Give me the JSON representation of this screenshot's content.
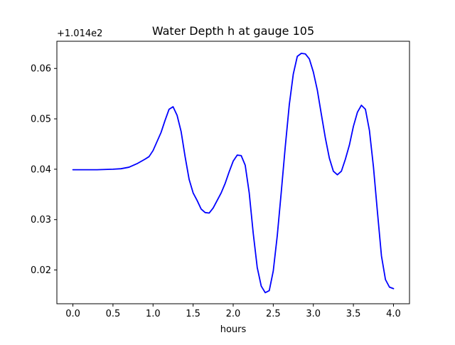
{
  "chart_data": {
    "type": "line",
    "title": "Water Depth h at gauge 105",
    "xlabel": "hours",
    "ylabel": "",
    "y_offset_label": "+1.014e2",
    "xlim": [
      -0.2,
      4.2
    ],
    "ylim": [
      0.0133,
      0.0654
    ],
    "xticks": [
      0.0,
      0.5,
      1.0,
      1.5,
      2.0,
      2.5,
      3.0,
      3.5,
      4.0
    ],
    "xtick_labels": [
      "0.0",
      "0.5",
      "1.0",
      "1.5",
      "2.0",
      "2.5",
      "3.0",
      "3.5",
      "4.0"
    ],
    "yticks": [
      0.02,
      0.03,
      0.04,
      0.05,
      0.06
    ],
    "ytick_labels": [
      "0.02",
      "0.03",
      "0.04",
      "0.05",
      "0.06"
    ],
    "grid": false,
    "legend": "none",
    "series": [
      {
        "color": "#0000ff",
        "x": [
          0.0,
          0.1,
          0.2,
          0.3,
          0.4,
          0.5,
          0.6,
          0.7,
          0.8,
          0.9,
          0.95,
          1.0,
          1.05,
          1.1,
          1.15,
          1.2,
          1.25,
          1.3,
          1.35,
          1.4,
          1.45,
          1.5,
          1.55,
          1.6,
          1.65,
          1.7,
          1.75,
          1.8,
          1.85,
          1.9,
          1.95,
          2.0,
          2.05,
          2.1,
          2.15,
          2.2,
          2.25,
          2.3,
          2.35,
          2.4,
          2.45,
          2.5,
          2.55,
          2.6,
          2.65,
          2.7,
          2.75,
          2.8,
          2.85,
          2.9,
          2.95,
          3.0,
          3.05,
          3.1,
          3.15,
          3.2,
          3.25,
          3.3,
          3.35,
          3.4,
          3.45,
          3.5,
          3.55,
          3.6,
          3.65,
          3.7,
          3.75,
          3.8,
          3.85,
          3.9,
          3.95,
          4.0
        ],
        "y": [
          0.0399,
          0.0399,
          0.0399,
          0.0399,
          0.03995,
          0.04,
          0.0401,
          0.0404,
          0.0411,
          0.042,
          0.0425,
          0.0437,
          0.0455,
          0.0473,
          0.0497,
          0.0519,
          0.0524,
          0.0507,
          0.0475,
          0.0425,
          0.038,
          0.0353,
          0.0338,
          0.0321,
          0.0314,
          0.0313,
          0.0323,
          0.0338,
          0.0353,
          0.0372,
          0.0395,
          0.0416,
          0.0428,
          0.0427,
          0.0408,
          0.0353,
          0.0273,
          0.0205,
          0.0168,
          0.0155,
          0.0159,
          0.0198,
          0.0268,
          0.0355,
          0.0445,
          0.0528,
          0.0589,
          0.0624,
          0.063,
          0.0629,
          0.0619,
          0.0593,
          0.0557,
          0.0509,
          0.0462,
          0.0422,
          0.0396,
          0.0389,
          0.0396,
          0.042,
          0.0448,
          0.0485,
          0.0513,
          0.0527,
          0.0519,
          0.0477,
          0.0405,
          0.0315,
          0.0228,
          0.0181,
          0.0166,
          0.0163
        ]
      }
    ]
  }
}
